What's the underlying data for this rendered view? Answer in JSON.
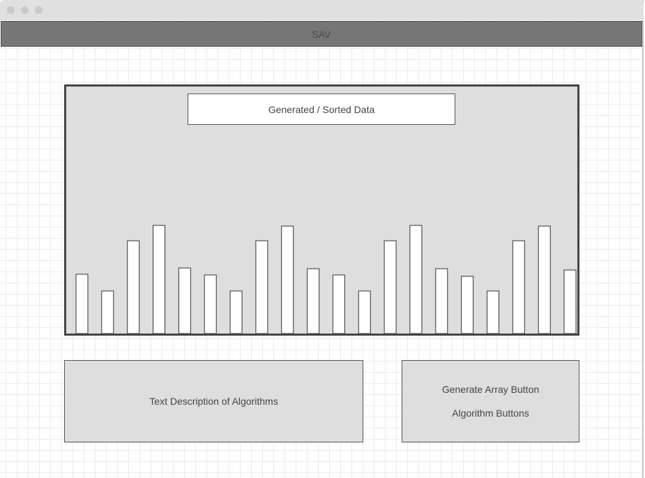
{
  "header": {
    "title": "SAV"
  },
  "chart": {
    "title": "Generated / Sorted Data"
  },
  "chart_data": {
    "type": "bar",
    "title": "Generated / Sorted Data",
    "values": [
      85,
      61,
      133,
      155,
      94,
      84,
      61,
      133,
      154,
      93,
      84,
      61,
      133,
      155,
      93,
      82,
      61,
      133,
      154,
      91
    ],
    "ylim": [
      0,
      200
    ]
  },
  "description": {
    "label": "Text Description of Algorithms"
  },
  "buttons_panel": {
    "generate_label": "Generate Array Button",
    "algorithms_label": "Algorithm Buttons"
  },
  "colors": {
    "header_bg": "#767676",
    "panel_bg": "#dedede",
    "bar_fill": "#ffffff"
  }
}
